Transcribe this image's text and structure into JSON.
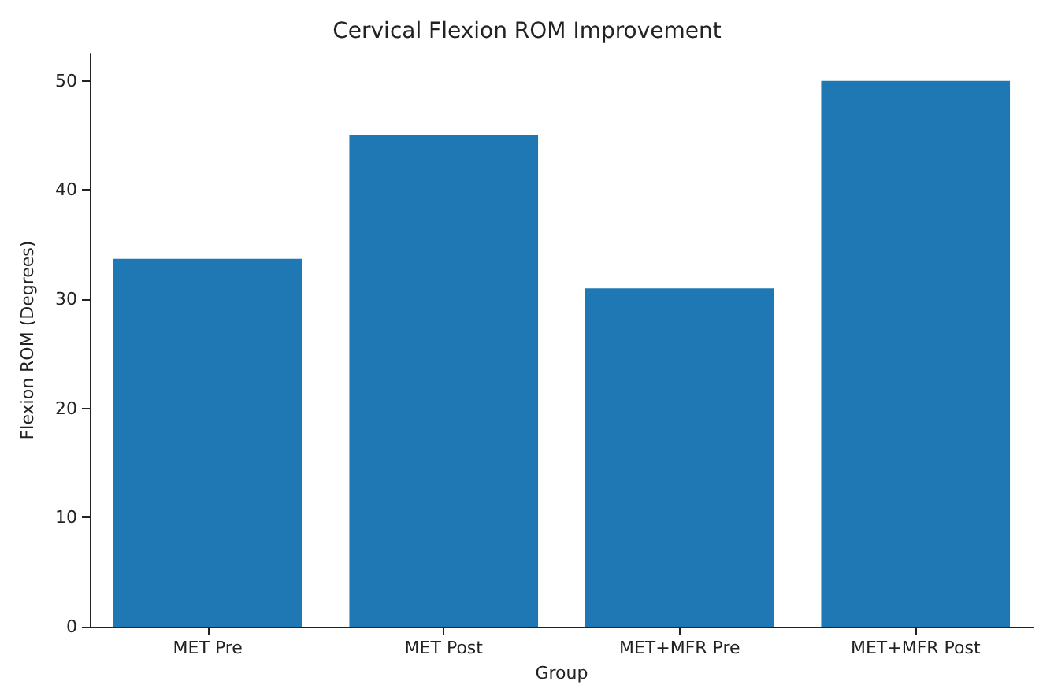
{
  "chart_data": {
    "type": "bar",
    "title": "Cervical Flexion ROM Improvement",
    "xlabel": "Group",
    "ylabel": "Flexion ROM (Degrees)",
    "categories": [
      "MET Pre",
      "MET Post",
      "MET+MFR Pre",
      "MET+MFR Post"
    ],
    "values": [
      33.7,
      45,
      31,
      50
    ],
    "color": "#1f77b4",
    "ylim": [
      0,
      52.5
    ],
    "yticks": [
      0,
      10,
      20,
      30,
      40,
      50
    ],
    "grid": false
  }
}
